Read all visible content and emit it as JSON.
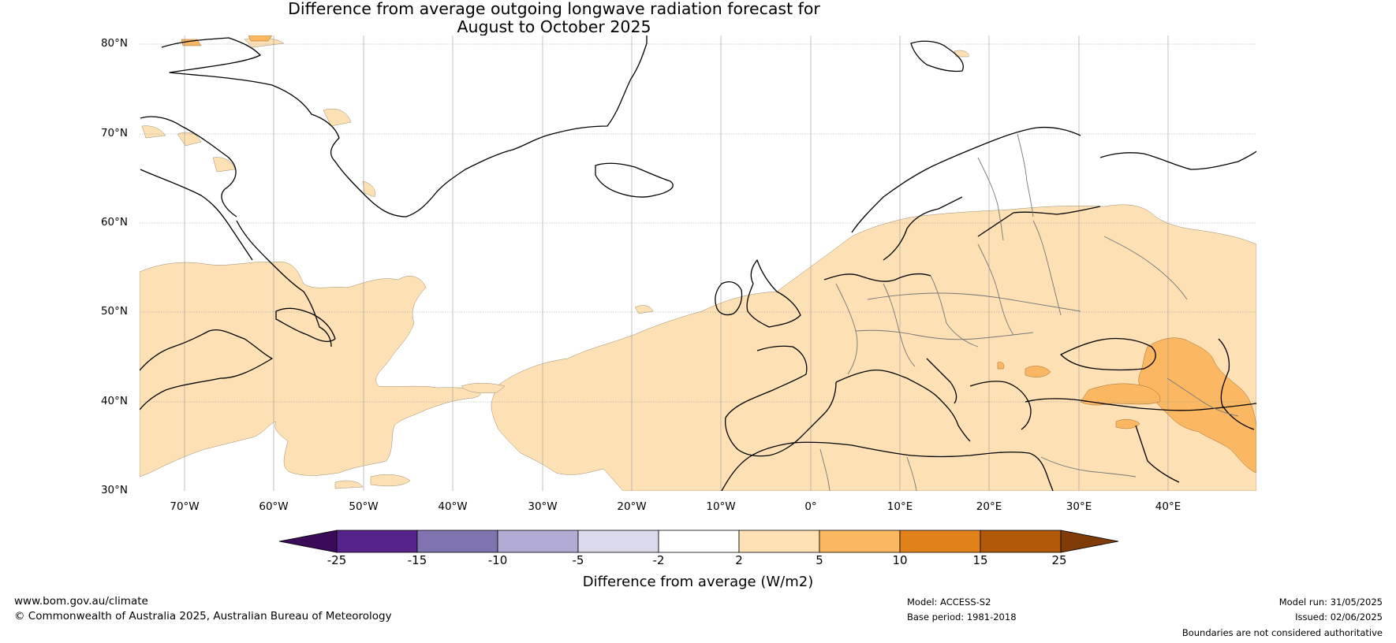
{
  "title": {
    "line1": "Difference from average outgoing longwave radiation forecast for",
    "line2": "August to October 2025"
  },
  "map": {
    "region": "North Atlantic and Europe",
    "lat_labels": [
      "80°N",
      "70°N",
      "60°N",
      "50°N",
      "40°N",
      "30°N"
    ],
    "lon_labels": [
      "70°W",
      "60°W",
      "50°W",
      "40°W",
      "30°W",
      "20°W",
      "10°W",
      "0°",
      "10°E",
      "20°E",
      "30°E",
      "40°E"
    ],
    "ocean_color": "#ffffff",
    "land_color": "#ffffff",
    "gridlines": true
  },
  "colorbar": {
    "tick_labels": [
      "-25",
      "-15",
      "-10",
      "-5",
      "-2",
      "2",
      "5",
      "10",
      "15",
      "25"
    ],
    "bins": [
      {
        "range": "< -25",
        "color": "#3b0a58"
      },
      {
        "range": "-25 to -15",
        "color": "#55238a"
      },
      {
        "range": "-15 to -10",
        "color": "#7f74b0"
      },
      {
        "range": "-10 to -5",
        "color": "#b2abd3"
      },
      {
        "range": "-5 to -2",
        "color": "#d9d9eb"
      },
      {
        "range": "-2 to 2",
        "color": "#ffffff"
      },
      {
        "range": "2 to 5",
        "color": "#fde0b4"
      },
      {
        "range": "5 to 10",
        "color": "#fbb762"
      },
      {
        "range": "10 to 15",
        "color": "#e1811a"
      },
      {
        "range": "15 to 25",
        "color": "#b25909"
      },
      {
        "range": "> 25",
        "color": "#7f3b08"
      }
    ],
    "label": "Difference from average (W/m2)"
  },
  "footer": {
    "website": "www.bom.gov.au/climate",
    "copyright": "© Commonwealth of Australia 2025, Australian Bureau of Meteorology",
    "model": "Model: ACCESS-S2",
    "base_period": "Base period: 1981-2018",
    "model_run": "Model run: 31/05/2025",
    "issued": "Issued: 02/06/2025",
    "disclaimer": "Boundaries are not considered authoritative"
  }
}
